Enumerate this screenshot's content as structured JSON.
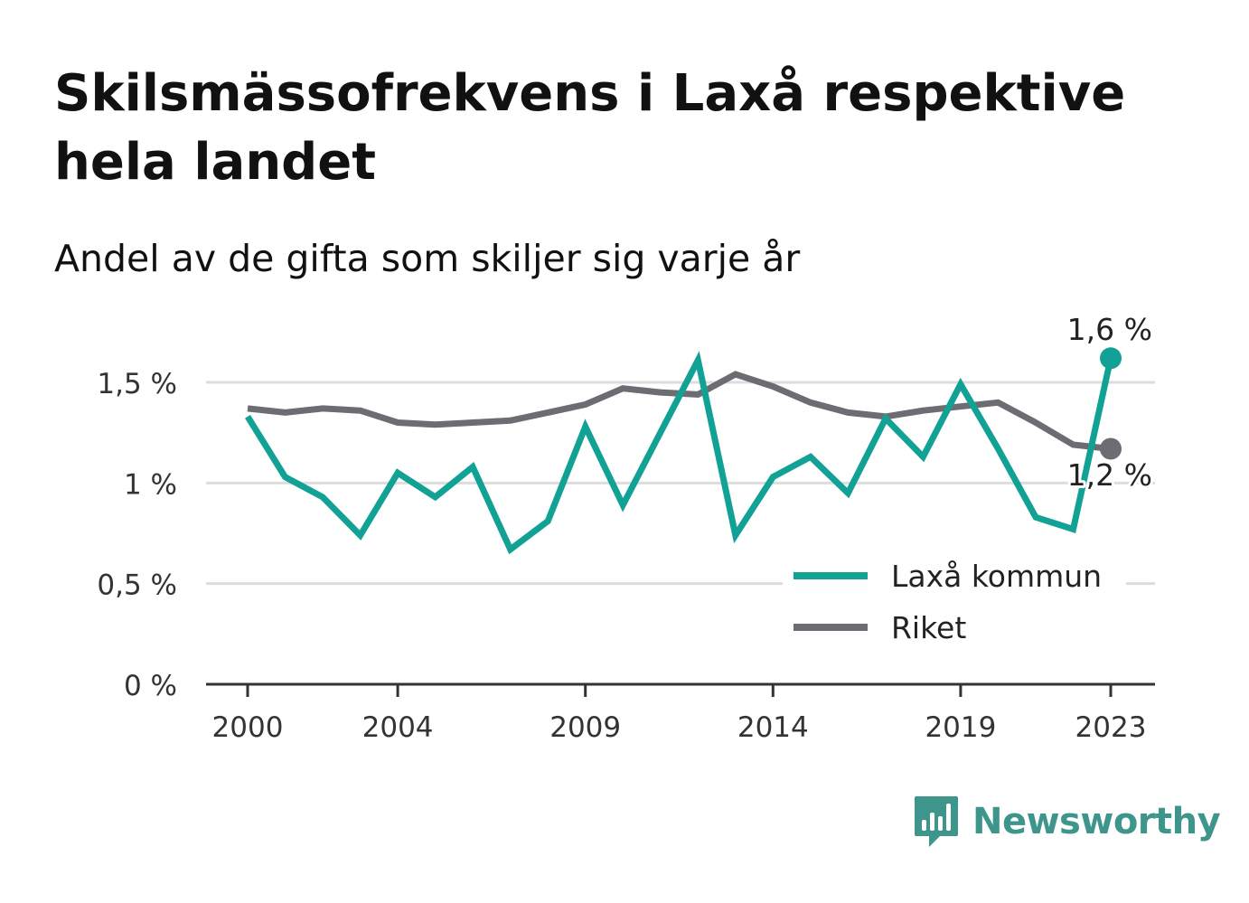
{
  "title": "Skilsmässofrekvens i Laxå respektive hela landet",
  "subtitle": "Andel av de gifta som skiljer sig varje år",
  "brand": {
    "name": "Newsworthy",
    "color": "#3e958c",
    "icon": "bar-chart-speech-bubble-icon"
  },
  "chart_data": {
    "type": "line",
    "x": [
      2000,
      2001,
      2002,
      2003,
      2004,
      2005,
      2006,
      2007,
      2008,
      2009,
      2010,
      2011,
      2012,
      2013,
      2014,
      2015,
      2016,
      2017,
      2018,
      2019,
      2020,
      2021,
      2022,
      2023
    ],
    "x_ticks": [
      2000,
      2004,
      2009,
      2014,
      2019,
      2023
    ],
    "x_tick_labels": [
      "2000",
      "2004",
      "2009",
      "2014",
      "2019",
      "2023"
    ],
    "ylim": [
      0,
      1.7
    ],
    "y_ticks": [
      0,
      0.5,
      1,
      1.5
    ],
    "y_tick_labels": [
      "0 %",
      "0,5 %",
      "1 %",
      "1,5 %"
    ],
    "grid": true,
    "legend_position": "bottom-right",
    "series": [
      {
        "name": "Laxå kommun",
        "color": "#12a195",
        "values": [
          1.33,
          1.03,
          0.93,
          0.74,
          1.05,
          0.93,
          1.08,
          0.67,
          0.81,
          1.28,
          0.89,
          1.25,
          1.61,
          0.74,
          1.03,
          1.13,
          0.95,
          1.32,
          1.13,
          1.49,
          1.17,
          0.83,
          0.77,
          1.62
        ],
        "end_label": "1,6 %"
      },
      {
        "name": "Riket",
        "color": "#6d6c72",
        "values": [
          1.37,
          1.35,
          1.37,
          1.36,
          1.3,
          1.29,
          1.3,
          1.31,
          1.35,
          1.39,
          1.47,
          1.45,
          1.44,
          1.54,
          1.48,
          1.4,
          1.35,
          1.33,
          1.36,
          1.38,
          1.4,
          1.3,
          1.19,
          1.17
        ],
        "end_label": "1,2 %"
      }
    ]
  }
}
